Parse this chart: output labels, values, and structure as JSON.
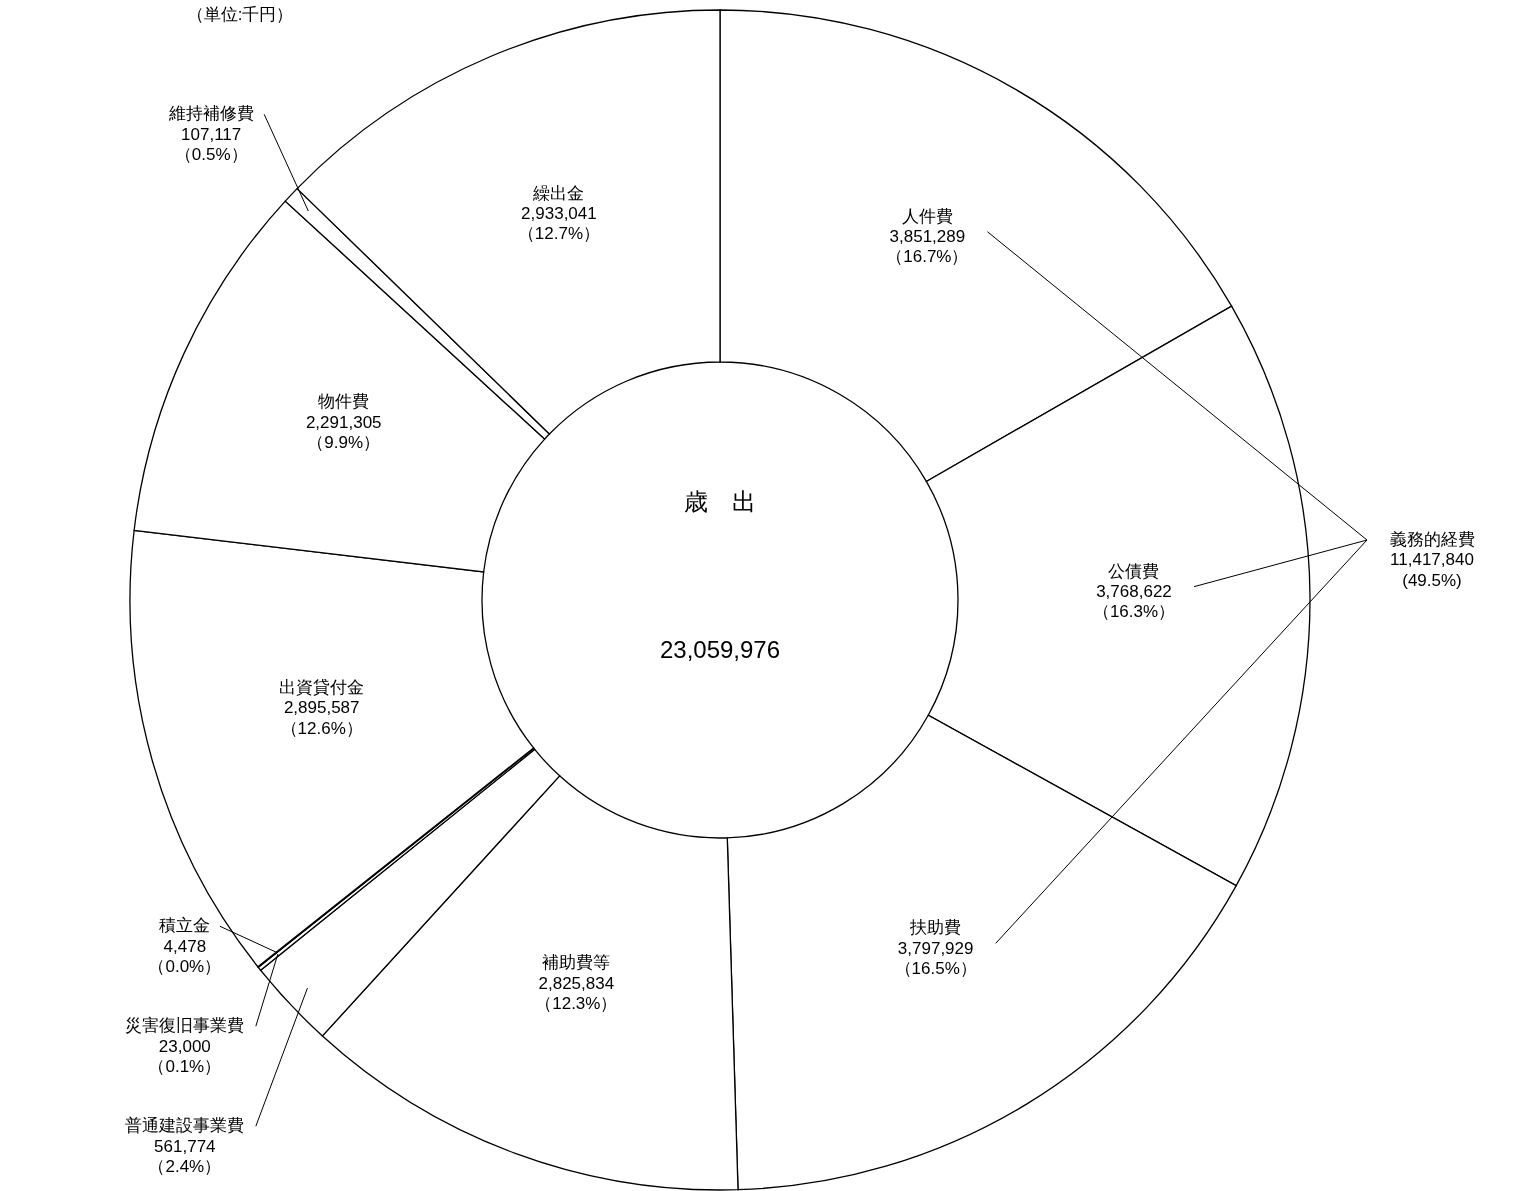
{
  "chart_data": {
    "type": "donut",
    "title": "歳　出",
    "categories": [
      "人件費",
      "公債費",
      "扶助費",
      "補助費等",
      "普通建設事業費",
      "災害復旧事業費",
      "積立金",
      "出資貸付金",
      "物件費",
      "維持補修費",
      "繰出金"
    ],
    "values": [
      3851289,
      3768622,
      3797929,
      2825834,
      561774,
      23000,
      4478,
      2895587,
      2291305,
      107117,
      2933041
    ],
    "value_labels": [
      "3,851,289\n（16.7%）",
      "3,768,622\n（16.3%）",
      "3,797,929\n（16.5%）",
      "2,825,834\n（12.3%）",
      "561,774\n（2.4%）",
      "23,000\n（0.1%）",
      "4,478\n（0.0%）",
      "2,895,587\n（12.6%）",
      "2,291,305\n（9.9%）",
      "107,117\n（0.5%）",
      "2,933,041\n（12.7%）"
    ],
    "colors": [
      "#ffffff",
      "#ffffff",
      "#ffffff",
      "#ffffff",
      "#ffffff",
      "#ffffff",
      "#ffffff",
      "#ffffff",
      "#ffffff",
      "#ffffff",
      "#ffffff"
    ],
    "annotations": [
      "23,059,976",
      "（単位:千円）",
      {
        "text": "義務的経費\n11,417,840\n(49.5%)",
        "x": [
          "人件費",
          "公債費",
          "扶助費"
        ]
      }
    ]
  }
}
